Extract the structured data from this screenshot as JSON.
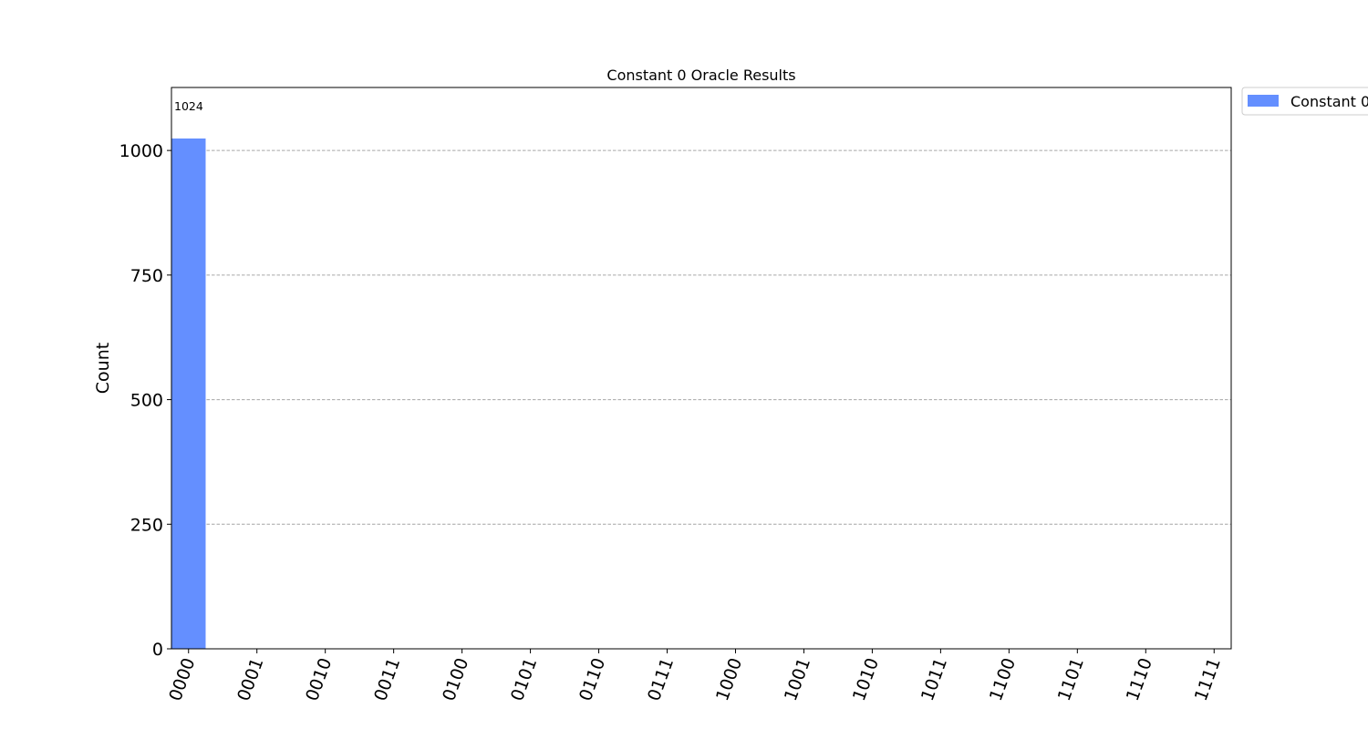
{
  "chart_data": {
    "type": "bar",
    "title": "Constant 0 Oracle Results",
    "xlabel": "",
    "ylabel": "Count",
    "categories": [
      "0000",
      "0001",
      "0010",
      "0011",
      "0100",
      "0101",
      "0110",
      "0111",
      "1000",
      "1001",
      "1010",
      "1011",
      "1100",
      "1101",
      "1110",
      "1111"
    ],
    "series": [
      {
        "name": "Constant 0",
        "color": "#648fff",
        "values": [
          1024,
          0,
          0,
          0,
          0,
          0,
          0,
          0,
          0,
          0,
          0,
          0,
          0,
          0,
          0,
          0
        ]
      }
    ],
    "data_labels": [
      "1024",
      "",
      "",
      "",
      "",
      "",
      "",
      "",
      "",
      "",
      "",
      "",
      "",
      "",
      "",
      ""
    ],
    "yticks": [
      0,
      250,
      500,
      750,
      1000
    ],
    "ylim": [
      0,
      1126.4
    ],
    "grid": "y-axis, dashed",
    "legend_position": "outside top-right",
    "xtick_rotation_deg": 70
  }
}
